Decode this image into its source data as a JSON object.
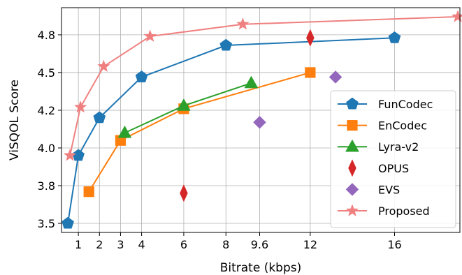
{
  "chart_data": {
    "type": "line",
    "title": "",
    "xlabel": "Bitrate (kbps)",
    "ylabel": "ViSQOL Score",
    "xlim": [
      0.2,
      19.1
    ],
    "ylim": [
      3.44,
      4.93
    ],
    "xticks": [
      1,
      2,
      3,
      4,
      6,
      8,
      9.6,
      12,
      16
    ],
    "xtick_labels": [
      "1",
      "2",
      "3",
      "4",
      "6",
      "8",
      "9.6",
      "12",
      "16"
    ],
    "yticks": [
      3.5,
      3.75,
      4.0,
      4.25,
      4.5,
      4.75
    ],
    "ytick_labels": [
      "3.5",
      "3.8",
      "4.0",
      "4.2",
      "4.5",
      "4.8"
    ],
    "grid": true,
    "legend_position": "lower-right",
    "series": [
      {
        "name": "FunCodec",
        "color": "#1f77b4",
        "marker": "pentagon",
        "line": true,
        "x": [
          0.5,
          1,
          2,
          4,
          8,
          16
        ],
        "y": [
          3.5,
          3.95,
          4.2,
          4.47,
          4.68,
          4.73
        ]
      },
      {
        "name": "EnCodec",
        "color": "#ff7f0e",
        "marker": "square",
        "line": true,
        "x": [
          1.5,
          3,
          6,
          12
        ],
        "y": [
          3.71,
          4.05,
          4.26,
          4.5
        ]
      },
      {
        "name": "Lyra-v2",
        "color": "#2ca02c",
        "marker": "triangle",
        "line": true,
        "x": [
          3.2,
          6,
          9.2
        ],
        "y": [
          4.1,
          4.28,
          4.43
        ]
      },
      {
        "name": "OPUS",
        "color": "#d62728",
        "marker": "thin-diamond",
        "line": false,
        "x": [
          6,
          12
        ],
        "y": [
          3.7,
          4.73
        ]
      },
      {
        "name": "EVS",
        "color": "#9467bd",
        "marker": "diamond",
        "line": false,
        "x": [
          9.6,
          13.2
        ],
        "y": [
          4.17,
          4.47
        ]
      },
      {
        "name": "Proposed",
        "color": "#f08080",
        "marker": "star",
        "line": true,
        "x": [
          0.6,
          1.1,
          2.2,
          4.4,
          8.8,
          19
        ],
        "y": [
          3.95,
          4.27,
          4.54,
          4.74,
          4.82,
          4.87
        ]
      }
    ]
  }
}
